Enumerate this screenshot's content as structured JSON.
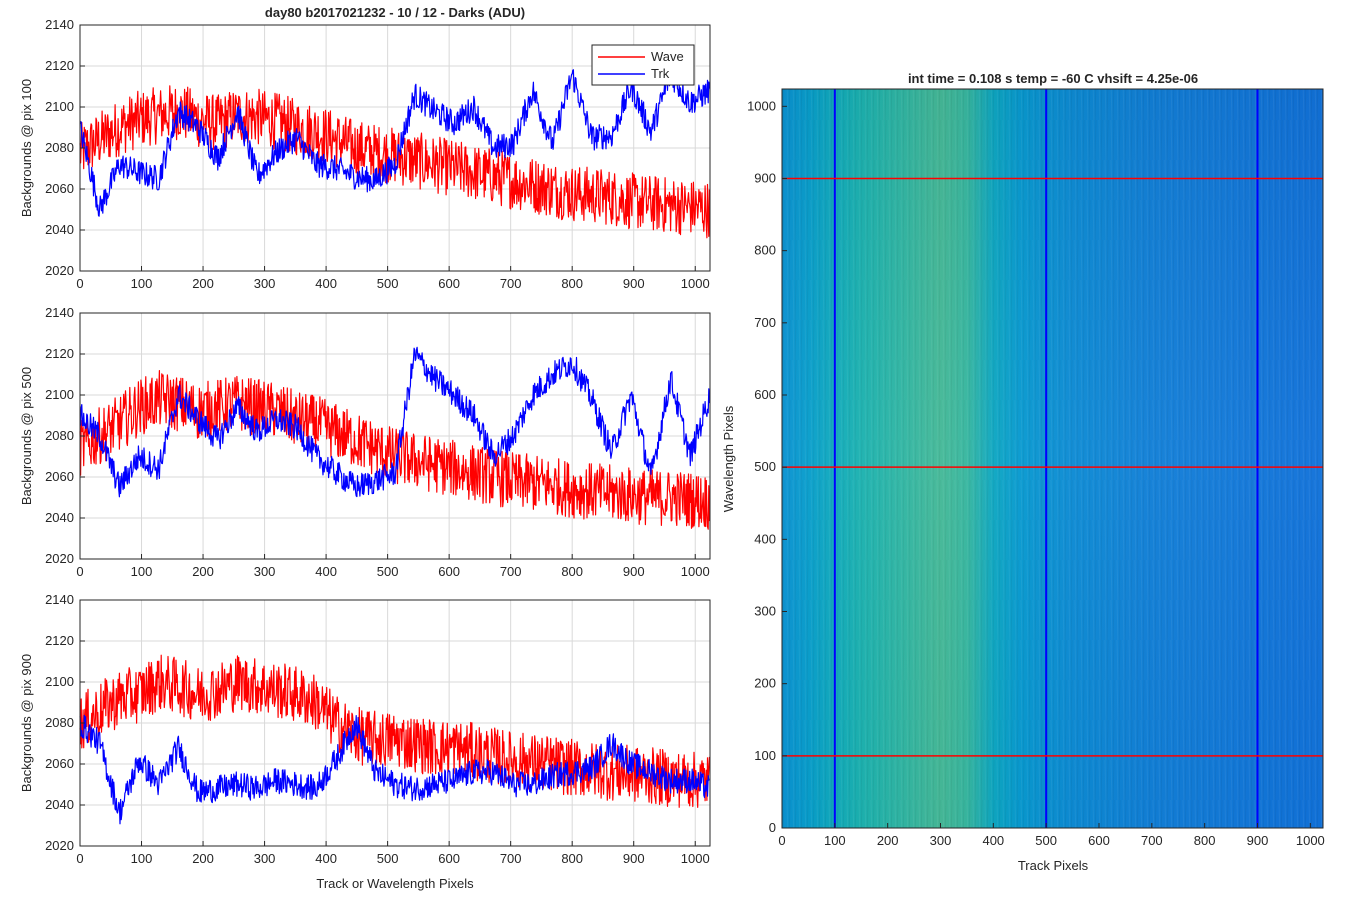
{
  "figure_title": "day80 b2017021232 - 10 / 12 - Darks (ADU)",
  "colors": {
    "wave": "#ff0000",
    "trk": "#0000ff",
    "grid": "#d9d9d9",
    "axis": "#262626"
  },
  "chart_data": [
    {
      "type": "line",
      "title": "day80 b2017021232 - 10 / 12 - Darks (ADU)",
      "xlabel": "",
      "ylabel": "Backgrounds @ pix 100",
      "xlim": [
        0,
        1024
      ],
      "ylim": [
        2020,
        2140
      ],
      "xticks": [
        0,
        100,
        200,
        300,
        400,
        500,
        600,
        700,
        800,
        900,
        1000
      ],
      "yticks": [
        2020,
        2040,
        2060,
        2080,
        2100,
        2120,
        2140
      ],
      "grid": true,
      "legend": "top-right",
      "x": [
        0,
        32,
        64,
        96,
        128,
        160,
        192,
        224,
        256,
        288,
        320,
        352,
        384,
        416,
        448,
        480,
        512,
        544,
        576,
        608,
        640,
        672,
        704,
        736,
        768,
        800,
        832,
        864,
        896,
        928,
        960,
        992,
        1024
      ],
      "series": [
        {
          "name": "Wave",
          "values": [
            2078,
            2084,
            2090,
            2094,
            2096,
            2098,
            2094,
            2092,
            2096,
            2095,
            2093,
            2090,
            2088,
            2084,
            2080,
            2078,
            2076,
            2074,
            2072,
            2070,
            2068,
            2066,
            2064,
            2062,
            2060,
            2058,
            2057,
            2056,
            2054,
            2053,
            2052,
            2051,
            2050
          ]
        },
        {
          "name": "Trk",
          "values": [
            2090,
            2050,
            2072,
            2068,
            2065,
            2098,
            2090,
            2075,
            2098,
            2066,
            2078,
            2085,
            2072,
            2070,
            2066,
            2064,
            2072,
            2106,
            2098,
            2092,
            2100,
            2080,
            2082,
            2108,
            2082,
            2116,
            2085,
            2086,
            2110,
            2088,
            2116,
            2102,
            2108
          ]
        }
      ]
    },
    {
      "type": "line",
      "title": "",
      "xlabel": "",
      "ylabel": "Backgrounds @ pix 500",
      "xlim": [
        0,
        1024
      ],
      "ylim": [
        2020,
        2140
      ],
      "xticks": [
        0,
        100,
        200,
        300,
        400,
        500,
        600,
        700,
        800,
        900,
        1000
      ],
      "yticks": [
        2020,
        2040,
        2060,
        2080,
        2100,
        2120,
        2140
      ],
      "grid": true,
      "legend": "none",
      "x": [
        0,
        32,
        64,
        96,
        128,
        160,
        192,
        224,
        256,
        288,
        320,
        352,
        384,
        416,
        448,
        480,
        512,
        544,
        576,
        608,
        640,
        672,
        704,
        736,
        768,
        800,
        832,
        864,
        896,
        928,
        960,
        992,
        1024
      ],
      "series": [
        {
          "name": "Wave",
          "values": [
            2074,
            2080,
            2086,
            2094,
            2098,
            2096,
            2092,
            2094,
            2096,
            2094,
            2092,
            2088,
            2086,
            2082,
            2078,
            2074,
            2070,
            2068,
            2066,
            2064,
            2062,
            2060,
            2058,
            2057,
            2056,
            2054,
            2053,
            2052,
            2051,
            2050,
            2050,
            2049,
            2048
          ]
        },
        {
          "name": "Trk",
          "values": [
            2090,
            2080,
            2055,
            2070,
            2064,
            2100,
            2088,
            2078,
            2094,
            2082,
            2088,
            2084,
            2070,
            2062,
            2055,
            2058,
            2062,
            2120,
            2108,
            2100,
            2090,
            2070,
            2080,
            2100,
            2110,
            2116,
            2098,
            2072,
            2100,
            2060,
            2108,
            2070,
            2100
          ]
        }
      ]
    },
    {
      "type": "line",
      "title": "",
      "xlabel": "Track or Wavelength Pixels",
      "ylabel": "Backgrounds @ pix 900",
      "xlim": [
        0,
        1024
      ],
      "ylim": [
        2020,
        2140
      ],
      "xticks": [
        0,
        100,
        200,
        300,
        400,
        500,
        600,
        700,
        800,
        900,
        1000
      ],
      "yticks": [
        2020,
        2040,
        2060,
        2080,
        2100,
        2120,
        2140
      ],
      "grid": true,
      "legend": "none",
      "x": [
        0,
        32,
        64,
        96,
        128,
        160,
        192,
        224,
        256,
        288,
        320,
        352,
        384,
        416,
        448,
        480,
        512,
        544,
        576,
        608,
        640,
        672,
        704,
        736,
        768,
        800,
        832,
        864,
        896,
        928,
        960,
        992,
        1024
      ],
      "series": [
        {
          "name": "Wave",
          "values": [
            2080,
            2086,
            2092,
            2094,
            2100,
            2098,
            2094,
            2096,
            2100,
            2098,
            2096,
            2094,
            2090,
            2080,
            2074,
            2072,
            2072,
            2070,
            2068,
            2068,
            2066,
            2064,
            2062,
            2061,
            2060,
            2058,
            2057,
            2056,
            2055,
            2054,
            2053,
            2052,
            2052
          ]
        },
        {
          "name": "Trk",
          "values": [
            2080,
            2070,
            2036,
            2062,
            2050,
            2068,
            2046,
            2048,
            2050,
            2048,
            2052,
            2050,
            2048,
            2062,
            2080,
            2056,
            2050,
            2048,
            2050,
            2052,
            2056,
            2056,
            2050,
            2050,
            2054,
            2056,
            2058,
            2070,
            2060,
            2056,
            2052,
            2052,
            2048
          ]
        }
      ]
    },
    {
      "type": "heatmap",
      "title": "int time = 0.108 s   temp = -60 C   vhsift = 4.25e-06",
      "xlabel": "Track Pixels",
      "ylabel": "Wavelength Pixels",
      "xlim": [
        0,
        1024
      ],
      "ylim": [
        0,
        1024
      ],
      "xticks": [
        0,
        100,
        200,
        300,
        400,
        500,
        600,
        700,
        800,
        900,
        1000
      ],
      "yticks": [
        0,
        100,
        200,
        300,
        400,
        500,
        600,
        700,
        800,
        900,
        1000
      ],
      "colormap": "parula",
      "column_profile": {
        "x": [
          0,
          50,
          100,
          150,
          200,
          250,
          300,
          350,
          400,
          450,
          500,
          550,
          600,
          650,
          700,
          750,
          800,
          850,
          900,
          950,
          1024
        ],
        "level": [
          0.4,
          0.46,
          0.52,
          0.56,
          0.58,
          0.6,
          0.62,
          0.6,
          0.5,
          0.44,
          0.4,
          0.37,
          0.35,
          0.33,
          0.31,
          0.3,
          0.29,
          0.28,
          0.27,
          0.26,
          0.25
        ]
      },
      "vertical_markers": [
        100,
        500,
        900
      ],
      "horizontal_markers": [
        100,
        500,
        900
      ],
      "marker_colors": {
        "vertical": "#0000ff",
        "horizontal": "#ff0000"
      }
    }
  ],
  "labels": {
    "legend_wave": "Wave",
    "legend_trk": "Trk"
  }
}
